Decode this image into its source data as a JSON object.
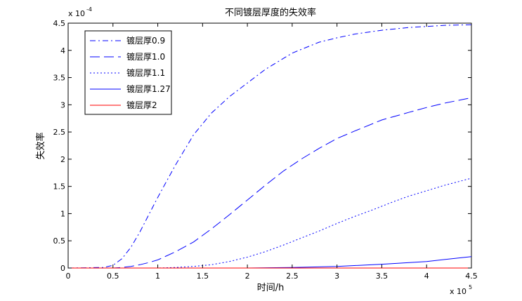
{
  "chart_data": {
    "type": "line",
    "title": "不同镀层厚度的失效率",
    "xlabel": "时间/h",
    "ylabel": "失效率",
    "x_multiplier": "x 10",
    "x_exponent": "5",
    "y_multiplier": "x 10",
    "y_exponent": "-4",
    "xlim": [
      0,
      4.5
    ],
    "ylim": [
      0,
      4.5
    ],
    "x_ticks": [
      "0",
      "0.5",
      "1",
      "1.5",
      "2",
      "2.5",
      "3",
      "3.5",
      "4",
      "4.5"
    ],
    "y_ticks": [
      "0",
      "0.5",
      "1",
      "1.5",
      "2",
      "2.5",
      "3",
      "3.5",
      "4",
      "4.5"
    ],
    "grid": false,
    "legend_position": "top-left",
    "series": [
      {
        "name": "镀层厚0.9",
        "color": "#0000ff",
        "dash": "dash-dot",
        "x": [
          0,
          0.4,
          0.5,
          0.6,
          0.7,
          0.8,
          0.9,
          1.0,
          1.2,
          1.4,
          1.6,
          1.8,
          2.0,
          2.2,
          2.5,
          2.8,
          3.0,
          3.2,
          3.5,
          3.8,
          4.0,
          4.2,
          4.5
        ],
        "y": [
          0,
          0.01,
          0.05,
          0.17,
          0.38,
          0.66,
          0.98,
          1.3,
          1.9,
          2.45,
          2.85,
          3.15,
          3.4,
          3.65,
          3.95,
          4.15,
          4.23,
          4.3,
          4.37,
          4.42,
          4.44,
          4.46,
          4.47
        ]
      },
      {
        "name": "镀层厚1.0",
        "color": "#0000ff",
        "dash": "long-dash",
        "x": [
          0,
          0.5,
          0.6,
          0.7,
          0.8,
          0.9,
          1.0,
          1.2,
          1.4,
          1.6,
          1.8,
          2.0,
          2.2,
          2.4,
          2.6,
          2.8,
          3.0,
          3.2,
          3.5,
          3.8,
          4.0,
          4.2,
          4.5
        ],
        "y": [
          0,
          0.0,
          0.01,
          0.03,
          0.06,
          0.1,
          0.15,
          0.3,
          0.48,
          0.72,
          0.98,
          1.25,
          1.52,
          1.78,
          2.0,
          2.2,
          2.38,
          2.52,
          2.72,
          2.86,
          2.95,
          3.03,
          3.13
        ]
      },
      {
        "name": "镀层厚1.1",
        "color": "#0000ff",
        "dash": "dotted",
        "x": [
          0,
          1.0,
          1.2,
          1.4,
          1.6,
          1.8,
          2.0,
          2.2,
          2.4,
          2.6,
          2.8,
          3.0,
          3.2,
          3.4,
          3.6,
          3.8,
          4.0,
          4.2,
          4.5
        ],
        "y": [
          0,
          0.0,
          0.01,
          0.03,
          0.06,
          0.12,
          0.2,
          0.3,
          0.42,
          0.55,
          0.68,
          0.82,
          0.95,
          1.07,
          1.2,
          1.32,
          1.42,
          1.52,
          1.65
        ]
      },
      {
        "name": "镀层厚1.27",
        "color": "#0000ff",
        "dash": "solid",
        "x": [
          0,
          2.0,
          2.5,
          3.0,
          3.5,
          4.0,
          4.5
        ],
        "y": [
          0,
          0.0,
          0.01,
          0.03,
          0.07,
          0.12,
          0.21
        ]
      },
      {
        "name": "镀层厚2",
        "color": "#ff0000",
        "dash": "solid",
        "x": [
          0,
          4.5
        ],
        "y": [
          0,
          0.0
        ]
      }
    ]
  }
}
